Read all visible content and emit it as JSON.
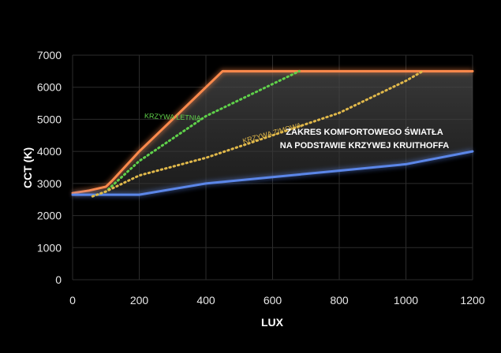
{
  "chart_data": {
    "type": "line",
    "xlabel": "LUX",
    "ylabel": "CCT (K)",
    "xlim": [
      0,
      1200
    ],
    "ylim": [
      0,
      7000
    ],
    "xticks": [
      0,
      200,
      400,
      600,
      800,
      1000,
      1200
    ],
    "yticks": [
      0,
      1000,
      2000,
      3000,
      4000,
      5000,
      6000,
      7000
    ],
    "grid": true,
    "annotation": {
      "lines": [
        "ZAKRES KOMFORTOWEGO ŚWIATŁA",
        "NA PODSTAWIE KRZYWEJ KRUITHOFFA"
      ],
      "x": 800,
      "y": 3950
    },
    "series": [
      {
        "name": "",
        "style": "solid",
        "color": "#ff8a4c",
        "x": [
          0,
          50,
          100,
          120,
          200,
          300,
          450,
          1200
        ],
        "y": [
          2700,
          2780,
          2900,
          3100,
          4000,
          5000,
          6500,
          6500
        ]
      },
      {
        "name": "",
        "style": "solid",
        "color": "#5b86e8",
        "x": [
          0,
          200,
          400,
          600,
          800,
          1000,
          1200
        ],
        "y": [
          2650,
          2650,
          3000,
          3200,
          3400,
          3600,
          4000
        ]
      },
      {
        "name": "KRZYWA LETNIA",
        "style": "dotted",
        "color": "#5fd14a",
        "x": [
          60,
          100,
          200,
          300,
          400,
          500,
          600,
          680
        ],
        "y": [
          2600,
          2750,
          3700,
          4400,
          5100,
          5600,
          6100,
          6500
        ]
      },
      {
        "name": "KRZYWA ZIMOWA",
        "style": "dotted",
        "color": "#e0b84a",
        "x": [
          60,
          100,
          200,
          400,
          600,
          800,
          1000,
          1050
        ],
        "y": [
          2600,
          2750,
          3250,
          3800,
          4500,
          5200,
          6200,
          6500
        ]
      }
    ]
  }
}
